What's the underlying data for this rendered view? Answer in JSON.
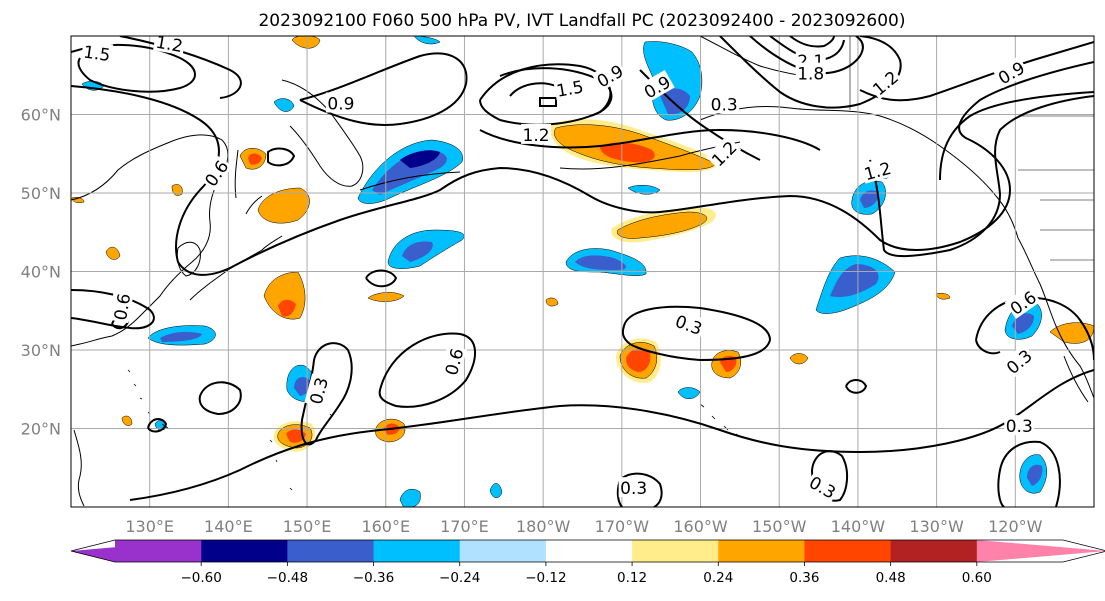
{
  "chart_data": {
    "type": "contour-map",
    "title": "2023092100 F060 500 hPa PV, IVT Landfall PC (2023092400 - 2023092600)",
    "map": {
      "lon_range": [
        120,
        250
      ],
      "lat_range": [
        10,
        70
      ],
      "xticks": [
        {
          "lon": 130,
          "label": "130°E"
        },
        {
          "lon": 140,
          "label": "140°E"
        },
        {
          "lon": 150,
          "label": "150°E"
        },
        {
          "lon": 160,
          "label": "160°E"
        },
        {
          "lon": 170,
          "label": "170°E"
        },
        {
          "lon": 180,
          "label": "180°W"
        },
        {
          "lon": 190,
          "label": "170°W"
        },
        {
          "lon": 200,
          "label": "160°W"
        },
        {
          "lon": 210,
          "label": "150°W"
        },
        {
          "lon": 220,
          "label": "140°W"
        },
        {
          "lon": 230,
          "label": "130°W"
        },
        {
          "lon": 240,
          "label": "120°W"
        }
      ],
      "yticks": [
        {
          "lat": 20,
          "label": "20°N"
        },
        {
          "lat": 30,
          "label": "30°N"
        },
        {
          "lat": 40,
          "label": "40°N"
        },
        {
          "lat": 50,
          "label": "50°N"
        },
        {
          "lat": 60,
          "label": "60°N"
        }
      ],
      "grid": true
    },
    "colorbar": {
      "orientation": "horizontal",
      "extend": "both",
      "boundaries": [
        -0.72,
        -0.6,
        -0.48,
        -0.36,
        -0.24,
        -0.12,
        0.12,
        0.24,
        0.36,
        0.48,
        0.6,
        0.72
      ],
      "colors": [
        "#9932cc",
        "#00008b",
        "#3a5fcd",
        "#00bfff",
        "#b0e2ff",
        "#ffffff",
        "#ffec8b",
        "#ffa500",
        "#ff4500",
        "#b22222",
        "#ff82ab"
      ],
      "tick_labels": [
        "−0.60",
        "−0.48",
        "−0.36",
        "−0.24",
        "−0.12",
        "0.12",
        "0.24",
        "0.36",
        "0.48",
        "0.60"
      ]
    },
    "contour_labels": [
      {
        "text": "1.5",
        "lon": 123.3,
        "lat": 67.8,
        "rot": 8
      },
      {
        "text": "1.2",
        "lon": 132.5,
        "lat": 69.0,
        "rot": 10
      },
      {
        "text": "0.9",
        "lon": 154.3,
        "lat": 61.4,
        "rot": 0
      },
      {
        "text": "0.6",
        "lon": 138.5,
        "lat": 52.5,
        "rot": -55
      },
      {
        "text": "0.6",
        "lon": 126.5,
        "lat": 35.5,
        "rot": -80
      },
      {
        "text": "1.5",
        "lon": 183.4,
        "lat": 63.3,
        "rot": -10
      },
      {
        "text": "1.2",
        "lon": 179.1,
        "lat": 57.4,
        "rot": 0
      },
      {
        "text": "0.9",
        "lon": 188.5,
        "lat": 64.9,
        "rot": -30
      },
      {
        "text": "0.9",
        "lon": 194.5,
        "lat": 63.5,
        "rot": -30
      },
      {
        "text": "0.3",
        "lon": 203.0,
        "lat": 61.3,
        "rot": 0
      },
      {
        "text": "2.1",
        "lon": 214.0,
        "lat": 66.8,
        "rot": 0
      },
      {
        "text": "1.8",
        "lon": 214.0,
        "lat": 65.2,
        "rot": 0
      },
      {
        "text": "1.2",
        "lon": 223.5,
        "lat": 64.0,
        "rot": -40
      },
      {
        "text": "0.9",
        "lon": 239.5,
        "lat": 65.3,
        "rot": -30
      },
      {
        "text": "1.2",
        "lon": 203.0,
        "lat": 55.0,
        "rot": -45
      },
      {
        "text": "1.2",
        "lon": 222.5,
        "lat": 52.8,
        "rot": -15
      },
      {
        "text": "0.3",
        "lon": 198.5,
        "lat": 33.2,
        "rot": 20
      },
      {
        "text": "0.6",
        "lon": 168.7,
        "lat": 28.5,
        "rot": -75
      },
      {
        "text": "0.3",
        "lon": 151.5,
        "lat": 24.8,
        "rot": -75
      },
      {
        "text": "0.6",
        "lon": 241.0,
        "lat": 36.0,
        "rot": -35
      },
      {
        "text": "0.3",
        "lon": 240.5,
        "lat": 28.5,
        "rot": -40
      },
      {
        "text": "0.3",
        "lon": 240.5,
        "lat": 20.3,
        "rot": 0
      },
      {
        "text": "0.3",
        "lon": 191.5,
        "lat": 12.4,
        "rot": 0
      },
      {
        "text": "0.3",
        "lon": 215.5,
        "lat": 12.5,
        "rot": 30
      }
    ]
  }
}
